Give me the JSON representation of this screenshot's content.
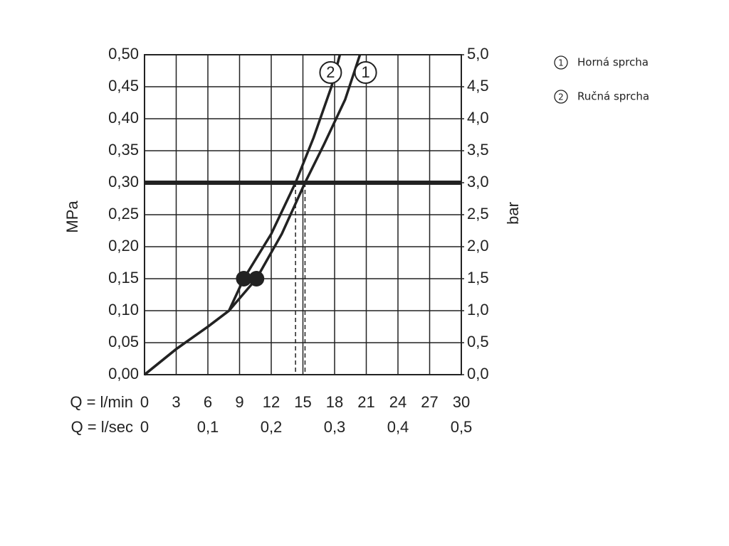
{
  "chart_data": {
    "type": "line",
    "ylabel": "MPa",
    "y2label": "bar",
    "xlabel": "Q = l/min",
    "x2label": "Q = l/sec",
    "xlim": [
      0,
      30
    ],
    "xticks": [
      0,
      3,
      6,
      9,
      12,
      15,
      18,
      21,
      24,
      27,
      30
    ],
    "x2lim": [
      0,
      0.5
    ],
    "x2ticks": [
      0,
      {
        "value": 0.1,
        "label": "0,1"
      },
      {
        "value": 0.2,
        "label": "0,2"
      },
      {
        "value": 0.3,
        "label": "0,3"
      },
      {
        "value": 0.4,
        "label": "0,4"
      },
      {
        "value": 0.5,
        "label": "0,5"
      }
    ],
    "ylim": [
      0,
      0.5
    ],
    "yticks": [
      {
        "value": 0,
        "label": "0,00"
      },
      {
        "value": 0.05,
        "label": "0,05"
      },
      {
        "value": 0.1,
        "label": "0,10"
      },
      {
        "value": 0.15,
        "label": "0,15"
      },
      {
        "value": 0.2,
        "label": "0,20"
      },
      {
        "value": 0.25,
        "label": "0,25"
      },
      {
        "value": 0.3,
        "label": "0,30"
      },
      {
        "value": 0.35,
        "label": "0,35"
      },
      {
        "value": 0.4,
        "label": "0,40"
      },
      {
        "value": 0.45,
        "label": "0,45"
      },
      {
        "value": 0.5,
        "label": "0,50"
      }
    ],
    "y2lim": [
      0,
      5
    ],
    "y2ticks": [
      {
        "value": 0,
        "label": "0,0"
      },
      {
        "value": 0.5,
        "label": "0,5"
      },
      {
        "value": 1,
        "label": "1,0"
      },
      {
        "value": 1.5,
        "label": "1,5"
      },
      {
        "value": 2,
        "label": "2,0"
      },
      {
        "value": 2.5,
        "label": "2,5"
      },
      {
        "value": 3,
        "label": "3,0"
      },
      {
        "value": 3.5,
        "label": "3,5"
      },
      {
        "value": 4,
        "label": "4,0"
      },
      {
        "value": 4.5,
        "label": "4,5"
      },
      {
        "value": 5,
        "label": "5,0"
      }
    ],
    "grid": true,
    "reference_line": 0.3,
    "series": [
      {
        "name": "Horná sprcha",
        "label": "1",
        "color": "#222222",
        "x": [
          0,
          3,
          6,
          8,
          10.6,
          13,
          15.2,
          17,
          19,
          20.4
        ],
        "values": [
          0,
          0.04,
          0.075,
          0.1,
          0.15,
          0.22,
          0.3,
          0.36,
          0.43,
          0.5
        ],
        "dot": {
          "x": 10.6,
          "y": 0.15
        },
        "intersection_x": 15.2
      },
      {
        "name": "Ručná sprcha",
        "label": "2",
        "color": "#222222",
        "x": [
          0,
          3,
          6,
          8,
          9.4,
          12,
          14.3,
          16,
          17.7,
          18.5
        ],
        "values": [
          0,
          0.04,
          0.075,
          0.1,
          0.15,
          0.22,
          0.3,
          0.37,
          0.45,
          0.5
        ],
        "dot": {
          "x": 9.4,
          "y": 0.15
        },
        "intersection_x": 14.3
      }
    ]
  }
}
